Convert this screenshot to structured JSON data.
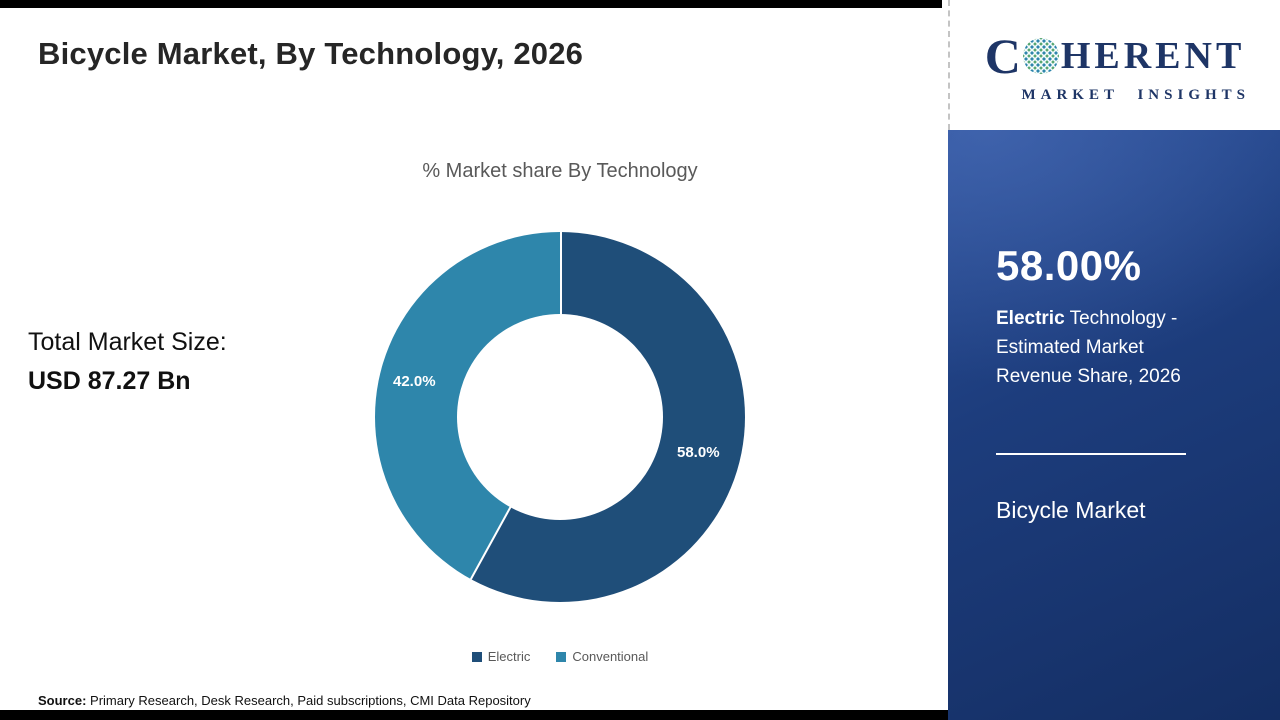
{
  "page": {
    "title": "Bicycle Market, By Technology, 2026",
    "source_label": "Source:",
    "source_text": " Primary Research, Desk Research, Paid subscriptions, CMI Data Repository"
  },
  "total_market": {
    "label": "Total Market Size:",
    "value": "USD 87.27 Bn"
  },
  "chart_data": {
    "type": "pie",
    "donut": true,
    "title": "% Market share By Technology",
    "categories": [
      "Electric",
      "Conventional"
    ],
    "values": [
      58.0,
      42.0
    ],
    "labels": [
      "58.0%",
      "42.0%"
    ],
    "colors": [
      "#1f4e79",
      "#2e86ab"
    ],
    "legend_position": "bottom"
  },
  "sidebar": {
    "logo": {
      "c": "C",
      "rest": "HERENT",
      "subtitle": "MARKET INSIGHTS"
    },
    "stat_value": "58.00%",
    "stat_desc_bold": "Electric",
    "stat_desc_rest": " Technology - Estimated Market Revenue Share, 2026",
    "footer": "Bicycle Market"
  },
  "colors": {
    "electric": "#1f4e79",
    "conventional": "#2e86ab",
    "sidebar_navy": "#1d3d7d",
    "bar_black": "#000000"
  }
}
